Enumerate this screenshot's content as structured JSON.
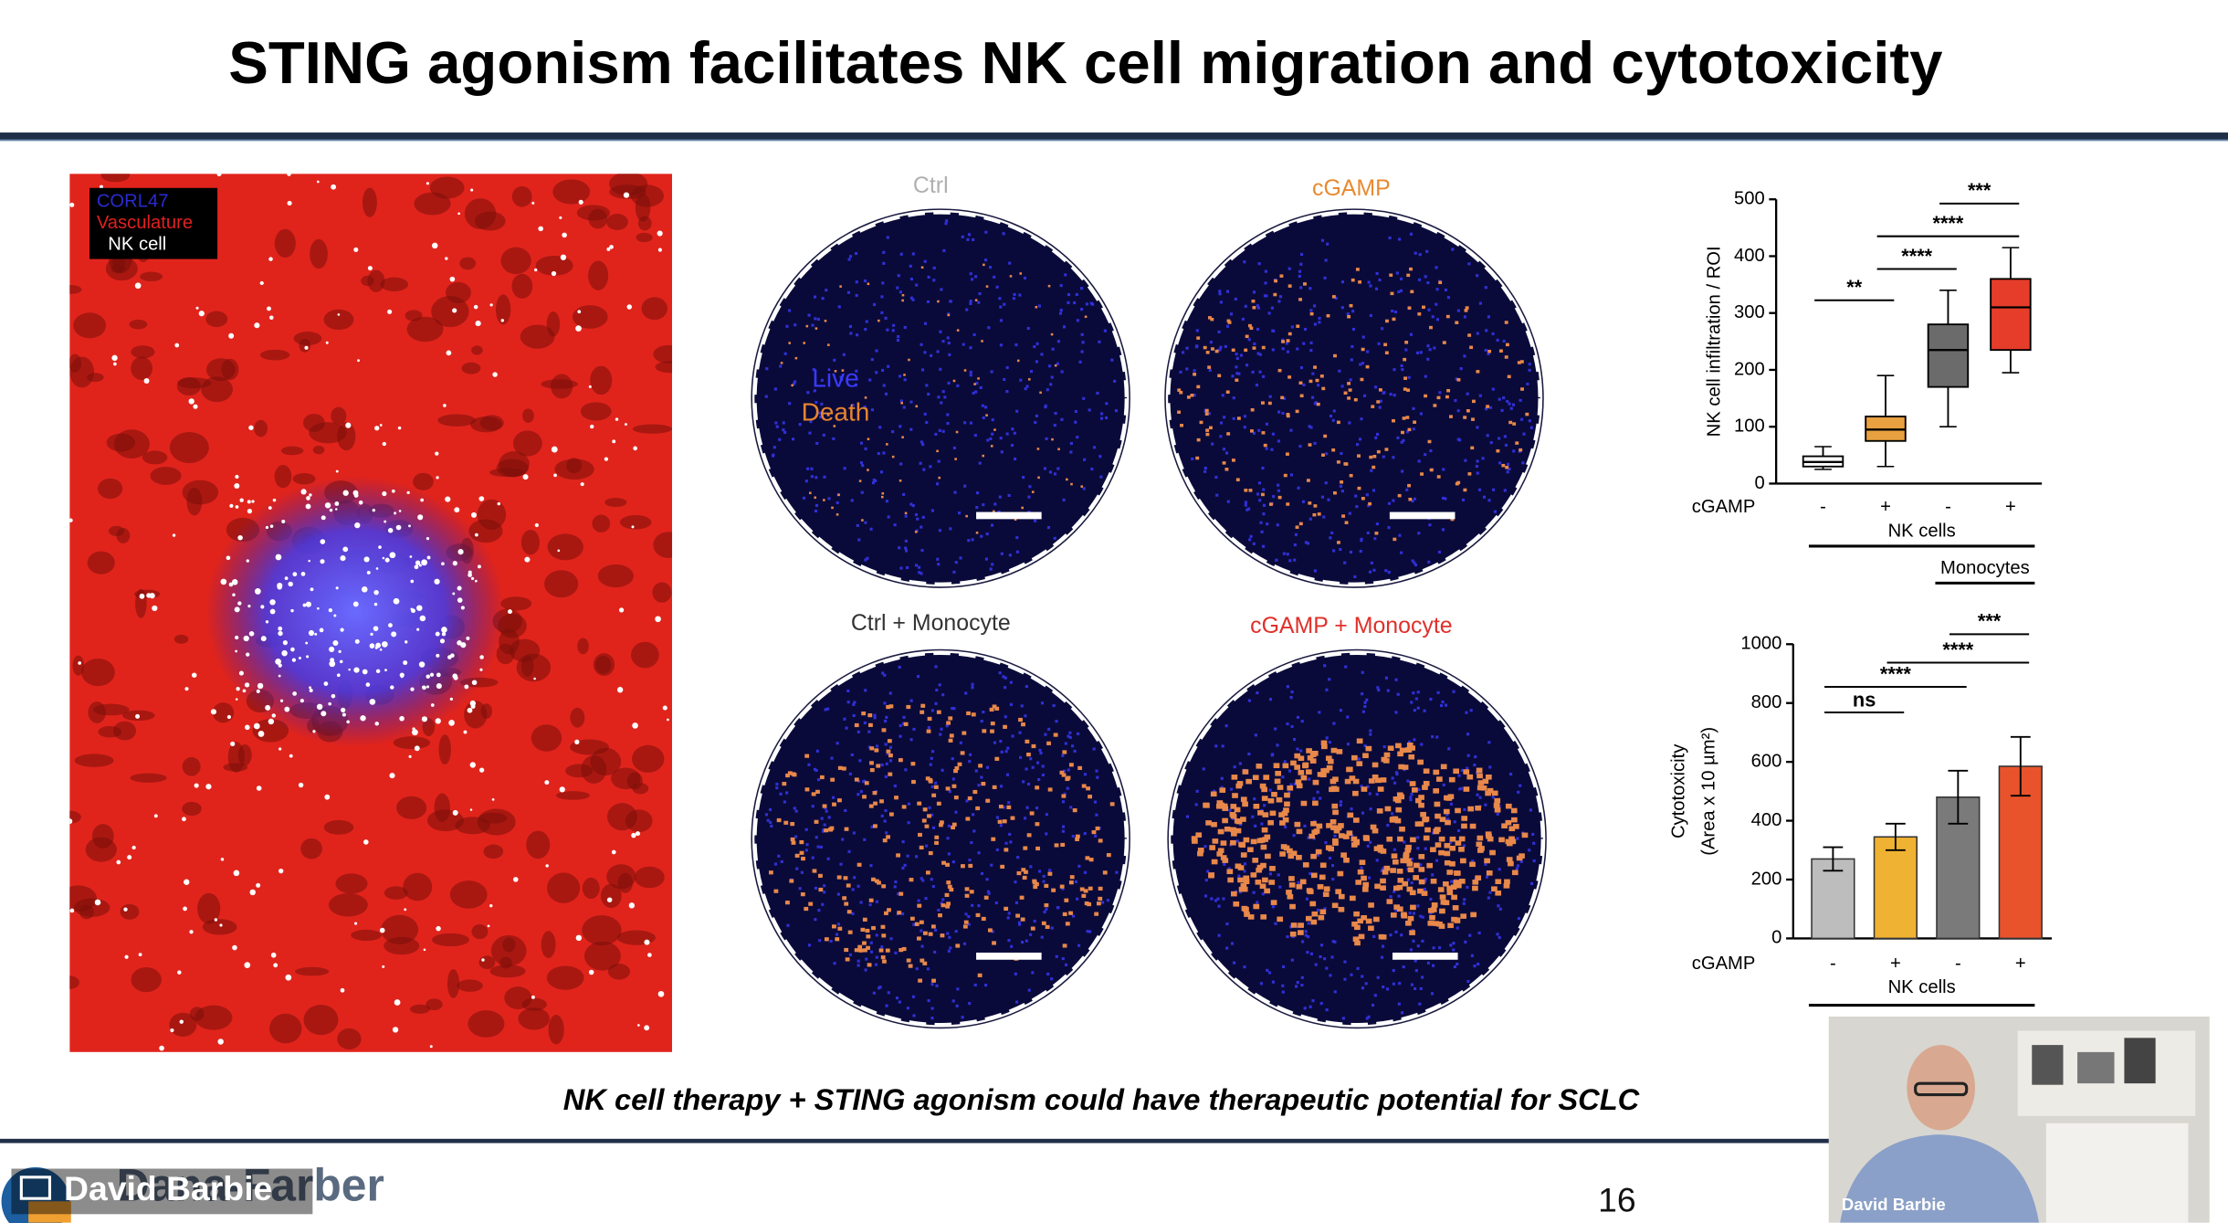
{
  "title": "STING agonism facilitates NK cell migration and cytotoxicity",
  "image_legend": [
    "CORL47",
    "Vasculature",
    "NK cell"
  ],
  "panels": [
    "Ctrl",
    "cGAMP",
    "Ctrl + Monocyte",
    "cGAMP + Monocyte"
  ],
  "panel_legend": [
    "Live",
    "Death"
  ],
  "caption": "NK cell therapy + STING agonism could have therapeutic potential for SCLC",
  "slide_number": "16",
  "footer_logo": "Dana-Farber",
  "presenter": "David Barbie",
  "chart_data": [
    {
      "type": "box",
      "y_label": "NK cell infiltration / ROI",
      "ylim": [
        0,
        500
      ],
      "yticks": [
        0,
        100,
        200,
        300,
        400,
        500
      ],
      "row_label": "cGAMP",
      "categories": [
        "-",
        "+",
        "-",
        "+"
      ],
      "group_labels": [
        "NK cells",
        "Monocytes"
      ],
      "boxes": [
        {
          "min": 25,
          "q1": 30,
          "median": 38,
          "q3": 48,
          "max": 65,
          "color": "#ffffff"
        },
        {
          "min": 30,
          "q1": 75,
          "median": 95,
          "q3": 118,
          "max": 190,
          "color": "#e8a040"
        },
        {
          "min": 100,
          "q1": 170,
          "median": 235,
          "q3": 280,
          "max": 340,
          "color": "#6b6b6b"
        },
        {
          "min": 195,
          "q1": 235,
          "median": 310,
          "q3": 360,
          "max": 415,
          "color": "#e63c2a"
        }
      ],
      "significance": [
        "**",
        "****",
        "****",
        "***"
      ]
    },
    {
      "type": "bar",
      "y_label": [
        "Cytotoxicity",
        "(Area x 10 µm²)"
      ],
      "ylim": [
        0,
        1000
      ],
      "yticks": [
        0,
        200,
        400,
        600,
        800,
        1000
      ],
      "row_label": "cGAMP",
      "categories": [
        "-",
        "+",
        "-",
        "+"
      ],
      "group_labels": [
        "NK cells"
      ],
      "values": [
        270,
        345,
        480,
        585
      ],
      "errors": [
        40,
        45,
        90,
        100
      ],
      "colors": [
        "#bdbdbd",
        "#f0b232",
        "#7a7a7a",
        "#e8532c"
      ],
      "significance": [
        "ns",
        "****",
        "****",
        "***"
      ]
    }
  ]
}
